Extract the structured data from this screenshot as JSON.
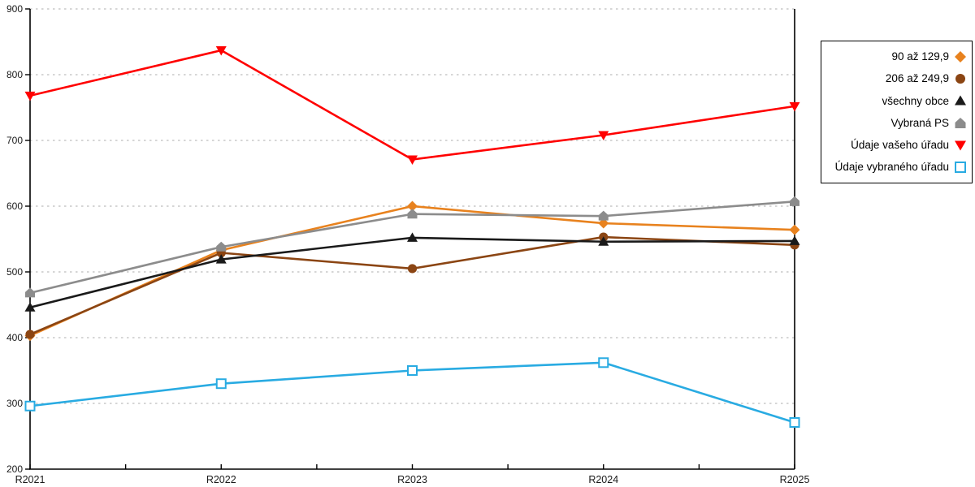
{
  "chart_data": {
    "type": "line",
    "title": "",
    "xlabel": "",
    "ylabel": "",
    "x_categories": [
      "R2021",
      "R2022",
      "R2023",
      "R2024",
      "R2025"
    ],
    "ylim": [
      200,
      900
    ],
    "y_ticks": [
      200,
      300,
      400,
      500,
      600,
      700,
      800,
      900
    ],
    "grid": "horizontal-dashed",
    "legend_position": "right",
    "series": [
      {
        "name": "90 až 129,9",
        "marker": "diamond",
        "color": "#E8821E",
        "values": [
          403,
          533,
          600,
          574,
          564
        ]
      },
      {
        "name": "206 až 249,9",
        "marker": "circle",
        "color": "#8B4513",
        "values": [
          405,
          529,
          505,
          553,
          541
        ]
      },
      {
        "name": "všechny obce",
        "marker": "triangle-up",
        "color": "#1A1A1A",
        "values": [
          446,
          519,
          552,
          546,
          547
        ]
      },
      {
        "name": "Vybraná PS",
        "marker": "pentagon",
        "color": "#8C8C8C",
        "values": [
          468,
          538,
          588,
          585,
          607
        ]
      },
      {
        "name": "Údaje vašeho úřadu",
        "marker": "triangle-down",
        "color": "#FF0000",
        "values": [
          768,
          837,
          671,
          708,
          752
        ]
      },
      {
        "name": "Údaje vybraného úřadu",
        "marker": "square-open",
        "color": "#29ABE2",
        "values": [
          296,
          330,
          350,
          362,
          271
        ]
      }
    ]
  },
  "style": {
    "axis_color": "#000000",
    "grid_color": "#BDBDBD",
    "tick_label_color": "#1A1A1A",
    "background": "#FFFFFF"
  }
}
